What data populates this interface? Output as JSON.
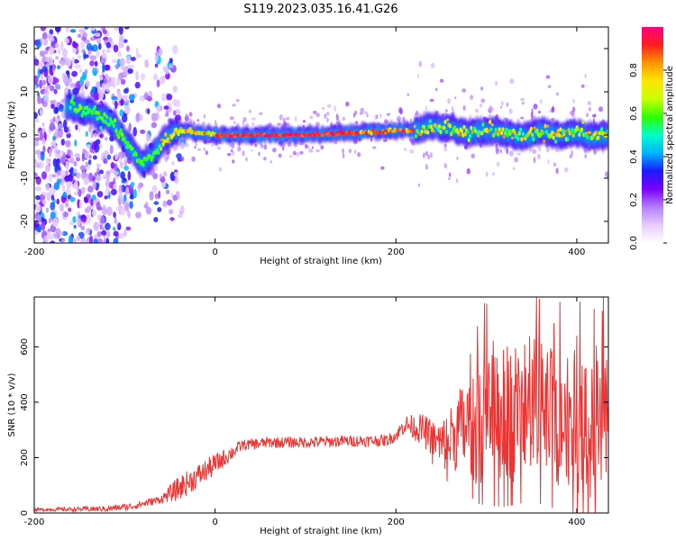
{
  "figure": {
    "title": "S119.2023.035.16.41.G26"
  },
  "chart_data": [
    {
      "type": "heatmap",
      "xlabel": "Height of straight line (km)",
      "ylabel": "Frequency (Hz)",
      "xlim": [
        -200,
        435
      ],
      "ylim": [
        -25,
        25
      ],
      "x_ticks": [
        -200,
        0,
        200,
        400
      ],
      "y_ticks": [
        -20,
        -10,
        0,
        10,
        20
      ],
      "colorbar": {
        "label": "Normalized spectral amplitude",
        "range": [
          0,
          1
        ],
        "ticks": [
          0.0,
          0.2,
          0.4,
          0.6,
          0.8
        ],
        "tick_labels": [
          "0.0",
          "0.2",
          "0.4",
          "0.6",
          "0.8"
        ],
        "colormap": [
          "#ffffff",
          "#e6ccff",
          "#b37dff",
          "#7a00ff",
          "#1a1aff",
          "#00b4ff",
          "#00ffc8",
          "#2eff00",
          "#c8ff00",
          "#ffe600",
          "#ff9600",
          "#ff1e1e",
          "#ff007f"
        ]
      },
      "ridge": {
        "x": [
          -160,
          -150,
          -140,
          -130,
          -120,
          -110,
          -100,
          -90,
          -85,
          -80,
          -70,
          -60,
          -50,
          -40,
          -30,
          -20,
          0,
          50,
          100,
          150,
          200,
          220,
          240,
          260,
          280,
          300,
          320,
          340,
          360,
          380,
          400,
          420,
          435
        ],
        "y": [
          6.5,
          6,
          5.5,
          4.5,
          4,
          2,
          -1,
          -4,
          -5.5,
          -6.5,
          -5,
          -2,
          0,
          1,
          1,
          0.5,
          0,
          0,
          0,
          0.5,
          1,
          1,
          2,
          1.5,
          0.5,
          1,
          0.5,
          -0.5,
          1,
          0,
          0.5,
          -0.5,
          0
        ]
      },
      "grid": false
    },
    {
      "type": "line",
      "xlabel": "Height of straight line (km)",
      "ylabel": "SNR (10 * v/v)",
      "xlim": [
        -200,
        435
      ],
      "ylim": [
        0,
        780
      ],
      "x_ticks": [
        -200,
        0,
        200,
        400
      ],
      "y_ticks": [
        0,
        200,
        400,
        600
      ],
      "series_color": "#ee3333",
      "envelope": {
        "x": [
          -200,
          -120,
          -90,
          -60,
          -30,
          0,
          30,
          60,
          100,
          150,
          190,
          200,
          210,
          230,
          250,
          270,
          300,
          320,
          350,
          380,
          400,
          420,
          435
        ],
        "y": [
          12,
          15,
          25,
          50,
          110,
          175,
          245,
          255,
          255,
          260,
          262,
          280,
          320,
          300,
          240,
          300,
          330,
          360,
          380,
          350,
          330,
          310,
          320
        ]
      },
      "spread": {
        "x": [
          -200,
          -60,
          -40,
          0,
          30,
          200,
          240,
          260,
          290,
          320,
          435
        ],
        "y": [
          5,
          15,
          45,
          40,
          20,
          22,
          70,
          120,
          220,
          260,
          260
        ]
      },
      "grid": false
    }
  ]
}
